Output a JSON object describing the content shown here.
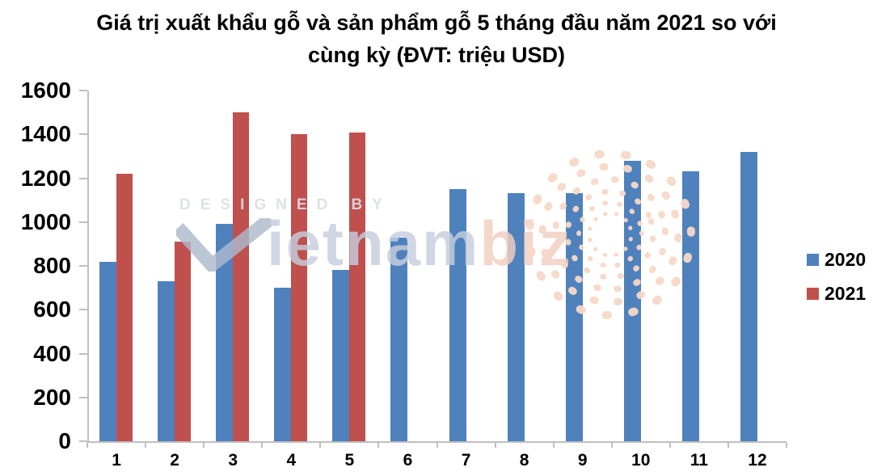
{
  "title_lines": [
    "Giá trị xuất khẩu gỗ và sản phẩm gỗ 5 tháng đầu năm 2021 so với",
    "cùng kỳ (ĐVT: triệu USD)"
  ],
  "watermark": {
    "designed_by": "DESIGNED BY",
    "brand_main": "ietnam",
    "brand_suffix": "biz"
  },
  "colors": {
    "series_2020": "#4F81BD",
    "series_2021": "#C0504D",
    "axis": "#BFBFBF",
    "watermark_gray": "#DCDFE3",
    "watermark_blue": "#C6CEDD",
    "watermark_salmon": "#F2CFC0",
    "swirl_dots": "#F6D9C8"
  },
  "chart_data": {
    "type": "bar",
    "title": "Giá trị xuất khẩu gỗ và sản phẩm gỗ 5 tháng đầu năm 2021 so với cùng kỳ (ĐVT: triệu USD)",
    "categories": [
      "1",
      "2",
      "3",
      "4",
      "5",
      "6",
      "7",
      "8",
      "9",
      "10",
      "11",
      "12"
    ],
    "series": [
      {
        "name": "2020",
        "color": "#4F81BD",
        "values": [
          820,
          730,
          990,
          700,
          780,
          930,
          1150,
          1130,
          1130,
          1280,
          1230,
          1320
        ]
      },
      {
        "name": "2021",
        "color": "#C0504D",
        "values": [
          1220,
          910,
          1500,
          1400,
          1410,
          null,
          null,
          null,
          null,
          null,
          null,
          null
        ]
      }
    ],
    "xlabel": "",
    "ylabel": "",
    "ylim": [
      0,
      1600
    ],
    "ytick_step": 200,
    "grid": false,
    "legend_position": "right-middle"
  }
}
